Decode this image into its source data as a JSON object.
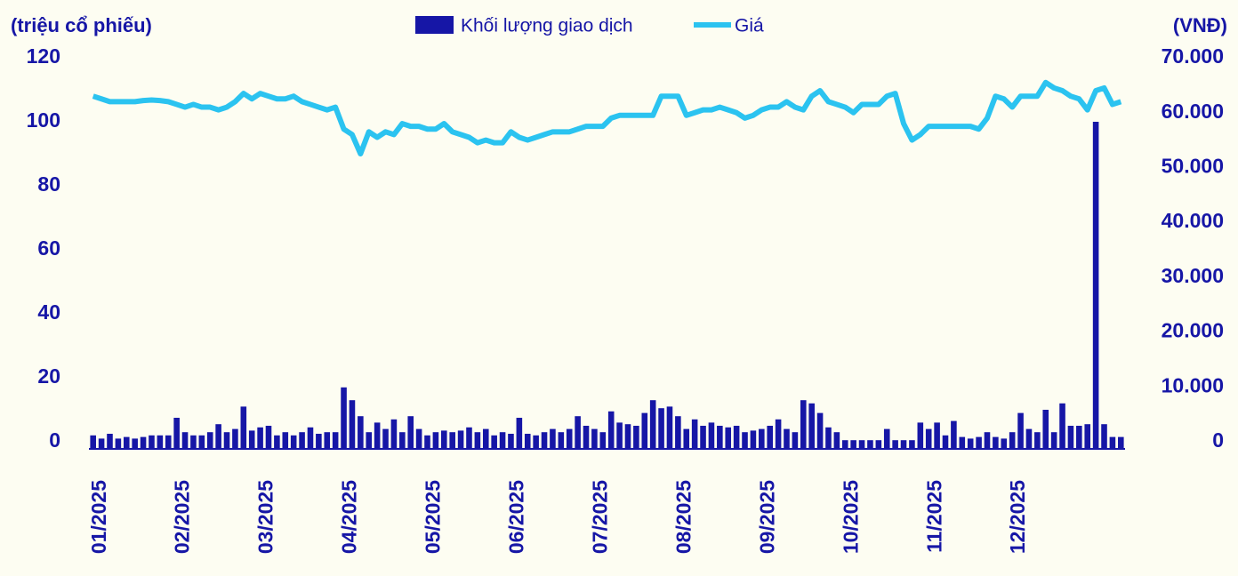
{
  "chart_data": {
    "type": "bar-line",
    "y_label": "(triệu cổ phiếu)",
    "y2_label": "(VNĐ)",
    "categories": [
      "01/2025",
      null,
      null,
      null,
      null,
      null,
      null,
      null,
      null,
      null,
      "02/2025",
      null,
      null,
      null,
      null,
      null,
      null,
      null,
      null,
      null,
      "03/2025",
      null,
      null,
      null,
      null,
      null,
      null,
      null,
      null,
      null,
      "04/2025",
      null,
      null,
      null,
      null,
      null,
      null,
      null,
      null,
      null,
      "05/2025",
      null,
      null,
      null,
      null,
      null,
      null,
      null,
      null,
      null,
      "06/2025",
      null,
      null,
      null,
      null,
      null,
      null,
      null,
      null,
      null,
      "07/2025",
      null,
      null,
      null,
      null,
      null,
      null,
      null,
      null,
      null,
      "08/2025",
      null,
      null,
      null,
      null,
      null,
      null,
      null,
      null,
      null,
      "09/2025",
      null,
      null,
      null,
      null,
      null,
      null,
      null,
      null,
      null,
      "10/2025",
      null,
      null,
      null,
      null,
      null,
      null,
      null,
      null,
      null,
      "11/2025",
      null,
      null,
      null,
      null,
      null,
      null,
      null,
      null,
      null,
      "12/2025",
      null,
      null,
      null,
      null,
      null,
      null,
      null,
      null,
      null,
      null,
      null,
      null,
      null
    ],
    "series": [
      {
        "name": "Khối lượng giao dịch",
        "type": "bar",
        "color": "#1616a6",
        "values": [
          2,
          1,
          2.5,
          1,
          1.5,
          1,
          1.5,
          2,
          2,
          2,
          7.5,
          3,
          2,
          2,
          3,
          5.5,
          3,
          4,
          11,
          3.5,
          4.5,
          5,
          2,
          3,
          2,
          3,
          4.5,
          2.5,
          3,
          3,
          17,
          13,
          8,
          3,
          6,
          4,
          7,
          3,
          8,
          4,
          2,
          3,
          3.5,
          3,
          3.5,
          4.5,
          3,
          4,
          2,
          3,
          2.5,
          7.5,
          2.5,
          2,
          3,
          4,
          3,
          4,
          8,
          5,
          4,
          3,
          9.5,
          6,
          5.5,
          5,
          9,
          13,
          10.5,
          11,
          8,
          4,
          7,
          5,
          6,
          5,
          4.5,
          5,
          3,
          3.5,
          4,
          5,
          7,
          4,
          3,
          13,
          12,
          9,
          4.5,
          3,
          0.5,
          0.5,
          0.5,
          0.5,
          0.5,
          4,
          0.5,
          0.5,
          0.5,
          6,
          4,
          6,
          2,
          6.5,
          1.5,
          1,
          1.5,
          3,
          1.5,
          1,
          3,
          9,
          4,
          3,
          10,
          3,
          12,
          5,
          5,
          5.5,
          100,
          5.5,
          1.5,
          1.5
        ]
      },
      {
        "name": "Giá",
        "type": "line",
        "axis": "y2",
        "color": "#2bc3f0",
        "values": [
          63000,
          62500,
          62000,
          62000,
          62000,
          62000,
          62200,
          62300,
          62200,
          62000,
          61500,
          61000,
          61500,
          61000,
          61000,
          60500,
          61000,
          62000,
          63500,
          62500,
          63500,
          63000,
          62500,
          62500,
          63000,
          62000,
          61500,
          61000,
          60500,
          61000,
          57000,
          56000,
          52500,
          56500,
          55500,
          56500,
          56000,
          58000,
          57500,
          57500,
          57000,
          57000,
          58000,
          56500,
          56000,
          55500,
          54500,
          55000,
          54500,
          54500,
          56500,
          55500,
          55000,
          55500,
          56000,
          56500,
          56500,
          56500,
          57000,
          57500,
          57500,
          57500,
          59000,
          59500,
          59500,
          59500,
          59500,
          59500,
          63000,
          63000,
          63000,
          59500,
          60000,
          60500,
          60500,
          61000,
          60500,
          60000,
          59000,
          59500,
          60500,
          61000,
          61000,
          62000,
          61000,
          60500,
          63000,
          64000,
          62000,
          61500,
          61000,
          60000,
          61500,
          61500,
          61500,
          63000,
          63500,
          58000,
          55000,
          56000,
          57500,
          57500,
          57500,
          57500,
          57500,
          57500,
          57000,
          59000,
          63000,
          62500,
          61000,
          63000,
          63000,
          63000,
          65500,
          64500,
          64000,
          63000,
          62500,
          60500,
          64000,
          64500,
          61500,
          62000
        ]
      }
    ],
    "ylim": [
      0,
      120
    ],
    "yticks": [
      0,
      20,
      40,
      60,
      80,
      100,
      120
    ],
    "y2lim": [
      0,
      70000
    ],
    "y2ticks": [
      0,
      {
        "value": 10000,
        "label": "10.000"
      },
      {
        "value": 20000,
        "label": "20.000"
      },
      {
        "value": 30000,
        "label": "30.000"
      },
      {
        "value": 40000,
        "label": "40.000"
      },
      {
        "value": 50000,
        "label": "50.000"
      },
      {
        "value": 60000,
        "label": "60.000"
      },
      {
        "value": 70000,
        "label": "70.000"
      }
    ],
    "grid": false,
    "legend": "top"
  }
}
